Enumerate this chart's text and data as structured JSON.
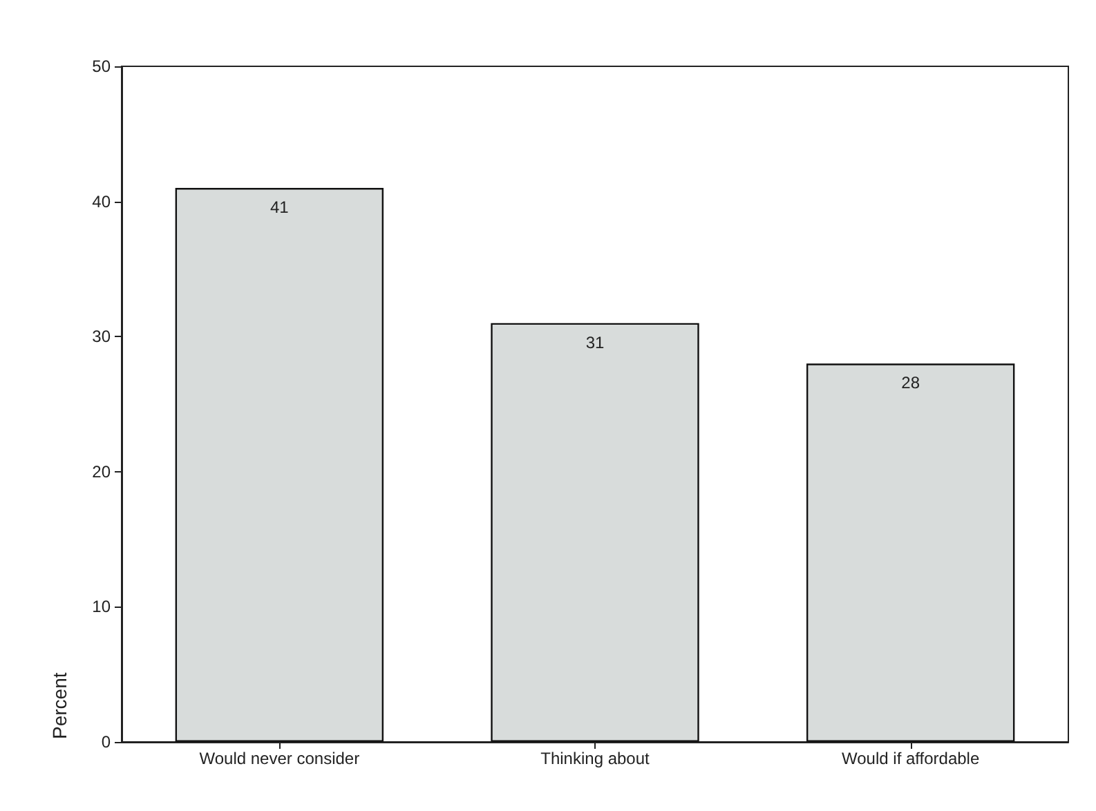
{
  "chart_data": {
    "type": "bar",
    "ylabel": "Percent",
    "categories": [
      "Would never consider",
      "Thinking about",
      "Would if affordable"
    ],
    "values": [
      41,
      31,
      28
    ],
    "color": "#d8dcdb",
    "ylim": [
      0,
      50
    ],
    "yticks": [
      0,
      10,
      20,
      30,
      40,
      50
    ],
    "data_labels": true,
    "grid": false
  }
}
